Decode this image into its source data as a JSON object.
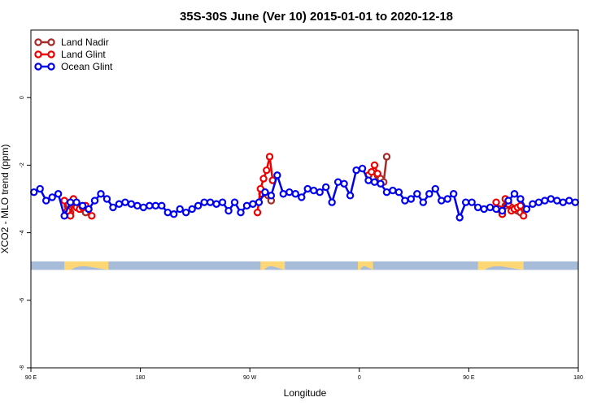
{
  "chart_data": {
    "type": "line",
    "title": "35S-30S June (Ver 10)   2015-01-01 to 2020-12-18",
    "xlabel": "Longitude",
    "ylabel": "XCO2 - MLO trend (ppm)",
    "xlim": [
      90,
      450
    ],
    "ylim": [
      -8,
      2
    ],
    "x_ticks": [
      {
        "value": 90,
        "label": "90 E"
      },
      {
        "value": 162,
        "label": "180"
      },
      {
        "value": 234,
        "label": "90 W"
      },
      {
        "value": 306,
        "label": "0"
      },
      {
        "value": 378,
        "label": "90 E"
      },
      {
        "value": 450,
        "label": "180"
      }
    ],
    "y_ticks": [
      0,
      -2,
      -4,
      -6,
      -8
    ],
    "legend": {
      "position": "top-left"
    },
    "series": [
      {
        "name": "Land Nadir",
        "color": "#a52a2a",
        "x": [
          114,
          116,
          118,
          120,
          122,
          124,
          126,
          128,
          242,
          244,
          246,
          248,
          318,
          320,
          322,
          324,
          398,
          400,
          402,
          404,
          406,
          408,
          410,
          412
        ],
        "y": [
          -3.2,
          -3.4,
          -3.1,
          -3.2,
          -3.3,
          -3.3,
          -3.4,
          -3.3,
          -2.85,
          -2.8,
          -2.9,
          -3.05,
          -2.3,
          -2.4,
          -2.5,
          -1.75,
          -3.3,
          -3.45,
          -3.2,
          -3.1,
          -3.25,
          -3.3,
          -3.35,
          -3.4
        ]
      },
      {
        "name": "Land Glint",
        "color": "#ee0000",
        "x": [
          112,
          114,
          116,
          118,
          120,
          122,
          124,
          126,
          128,
          130,
          239,
          241,
          243,
          245,
          247,
          249,
          312,
          314,
          316,
          318,
          396,
          398,
          400,
          402,
          404,
          406,
          408,
          410,
          412,
          414
        ],
        "y": [
          -3.05,
          -3.35,
          -3.5,
          -3.0,
          -3.25,
          -3.3,
          -3.25,
          -3.2,
          -3.3,
          -3.5,
          -3.4,
          -2.7,
          -2.4,
          -2.15,
          -1.75,
          -2.45,
          -2.3,
          -2.2,
          -2.0,
          -2.25,
          -3.1,
          -3.3,
          -3.45,
          -3.0,
          -3.15,
          -3.35,
          -3.3,
          -3.25,
          -3.2,
          -3.5
        ]
      },
      {
        "name": "Ocean Glint",
        "color": "#0000ee",
        "x": [
          92,
          96,
          100,
          104,
          108,
          112,
          116,
          120,
          124,
          128,
          132,
          136,
          140,
          144,
          148,
          152,
          156,
          160,
          164,
          168,
          172,
          176,
          180,
          184,
          188,
          192,
          196,
          200,
          204,
          208,
          212,
          216,
          220,
          224,
          228,
          232,
          236,
          240,
          244,
          248,
          252,
          256,
          260,
          264,
          268,
          272,
          276,
          280,
          284,
          288,
          292,
          296,
          300,
          304,
          308,
          312,
          316,
          320,
          324,
          328,
          332,
          336,
          340,
          344,
          348,
          352,
          356,
          360,
          364,
          368,
          372,
          376,
          380,
          384,
          388,
          392,
          396,
          400,
          404,
          408,
          412,
          416,
          420,
          424,
          428,
          432,
          436,
          440,
          444,
          448
        ],
        "y": [
          -2.8,
          -2.7,
          -3.05,
          -2.95,
          -2.85,
          -3.5,
          -3.1,
          -3.1,
          -3.2,
          -3.3,
          -3.05,
          -2.85,
          -3.0,
          -3.25,
          -3.15,
          -3.1,
          -3.15,
          -3.2,
          -3.25,
          -3.2,
          -3.2,
          -3.2,
          -3.4,
          -3.45,
          -3.3,
          -3.4,
          -3.3,
          -3.2,
          -3.1,
          -3.1,
          -3.15,
          -3.1,
          -3.35,
          -3.1,
          -3.4,
          -3.2,
          -3.15,
          -3.1,
          -2.8,
          -2.9,
          -2.3,
          -2.85,
          -2.8,
          -2.85,
          -2.95,
          -2.7,
          -2.75,
          -2.8,
          -2.65,
          -3.1,
          -2.5,
          -2.55,
          -2.9,
          -2.15,
          -2.1,
          -2.45,
          -2.5,
          -2.55,
          -2.8,
          -2.75,
          -2.8,
          -3.05,
          -3.0,
          -2.85,
          -3.1,
          -2.85,
          -2.7,
          -3.05,
          -3.0,
          -2.85,
          -3.55,
          -3.1,
          -3.1,
          -3.25,
          -3.3,
          -3.25,
          -3.3,
          -3.35,
          -3.05,
          -2.85,
          -3.0,
          -3.3,
          -3.15,
          -3.1,
          -3.05,
          -3.0,
          -3.05,
          -3.1,
          -3.05,
          -3.1
        ]
      }
    ],
    "land_mask": {
      "y_band": [
        -5.1,
        -4.85
      ],
      "ocean_color": "#a7bcd8",
      "land_color": "#fdd676",
      "land_segments": [
        [
          112,
          141
        ],
        [
          241,
          257
        ],
        [
          305,
          315
        ],
        [
          384,
          414
        ]
      ]
    }
  }
}
